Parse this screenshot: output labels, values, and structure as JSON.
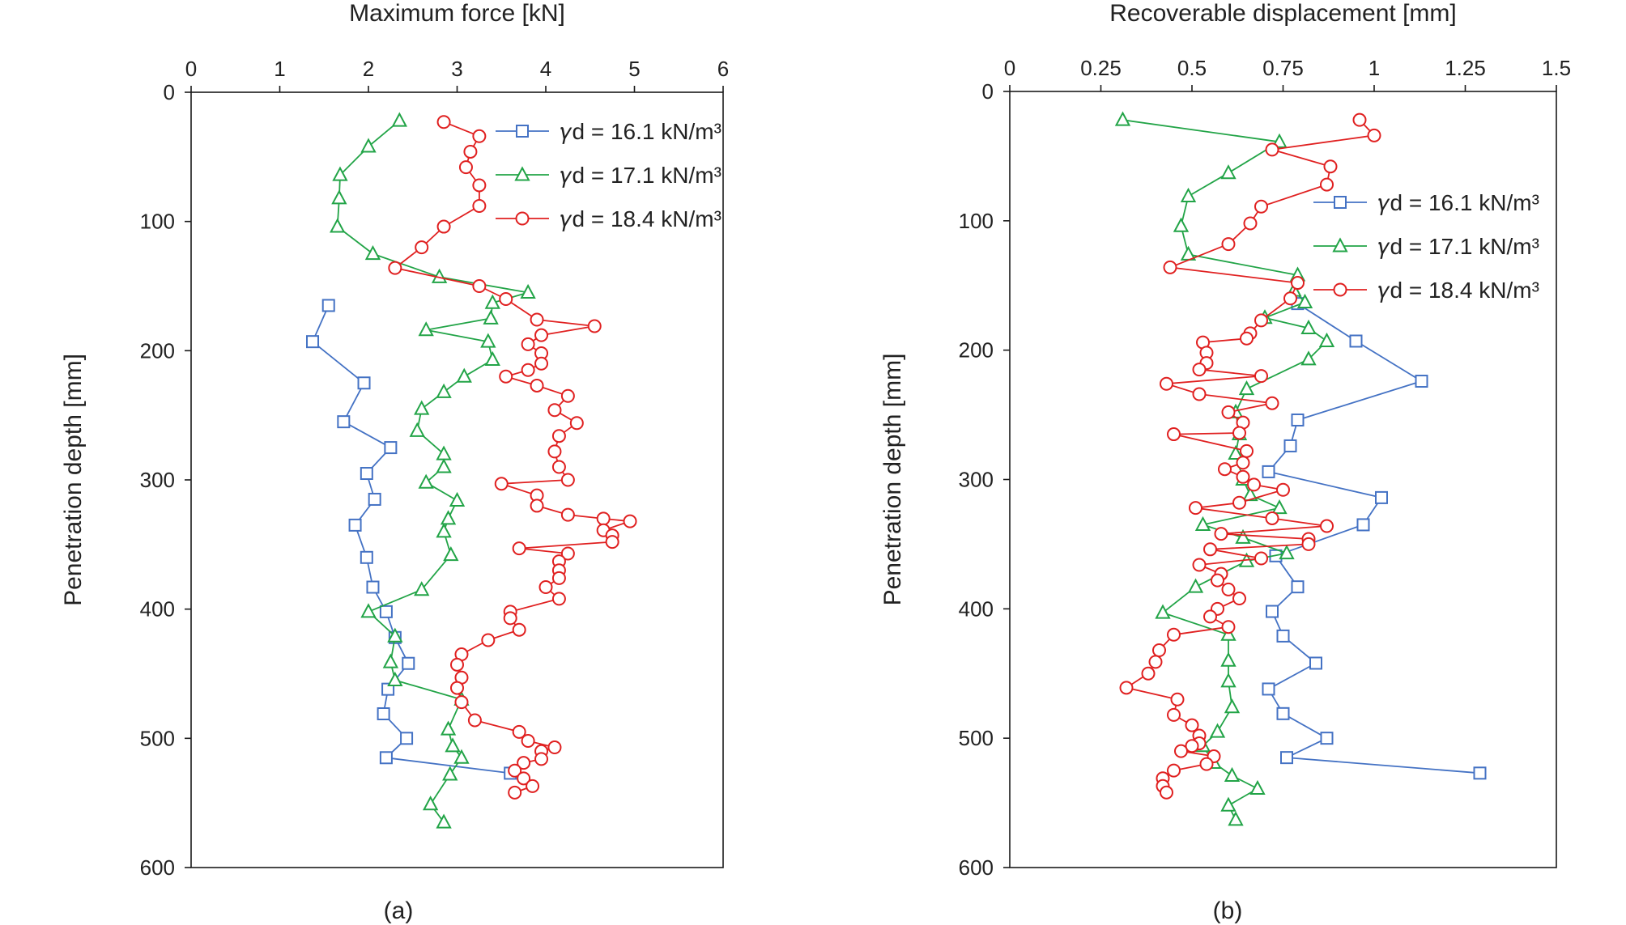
{
  "chart_data": [
    {
      "type": "line",
      "panel_label": "(a)",
      "xlabel": "Maximum force [kN]",
      "ylabel": "Penetration depth [mm]",
      "xlim": [
        0,
        6
      ],
      "ylim": [
        0,
        600
      ],
      "x_axis_position": "top",
      "y_inverted": true,
      "x_ticks": [
        "0",
        "1",
        "2",
        "3",
        "4",
        "5",
        "6"
      ],
      "y_ticks": [
        "0",
        "100",
        "200",
        "300",
        "400",
        "500",
        "600"
      ],
      "grid": false,
      "legend_position": "top-right",
      "series": [
        {
          "name": "𝛾d = 16.1 kN/m³",
          "color": "#4472c4",
          "marker": "square",
          "points": [
            [
              1.55,
              165
            ],
            [
              1.37,
              193
            ],
            [
              1.95,
              225
            ],
            [
              1.72,
              255
            ],
            [
              2.25,
              275
            ],
            [
              1.98,
              295
            ],
            [
              2.07,
              315
            ],
            [
              1.85,
              335
            ],
            [
              1.98,
              360
            ],
            [
              2.05,
              383
            ],
            [
              2.2,
              402
            ],
            [
              2.3,
              422
            ],
            [
              2.45,
              442
            ],
            [
              2.22,
              462
            ],
            [
              2.17,
              481
            ],
            [
              2.43,
              500
            ],
            [
              2.2,
              515
            ],
            [
              3.6,
              527
            ]
          ]
        },
        {
          "name": "𝛾d = 17.1 kN/m³",
          "color": "#22a447",
          "marker": "triangle",
          "points": [
            [
              2.35,
              22
            ],
            [
              2.0,
              42
            ],
            [
              1.68,
              64
            ],
            [
              1.67,
              82
            ],
            [
              1.65,
              104
            ],
            [
              2.05,
              125
            ],
            [
              2.8,
              143
            ],
            [
              3.8,
              155
            ],
            [
              3.4,
              163
            ],
            [
              3.38,
              175
            ],
            [
              2.65,
              184
            ],
            [
              3.35,
              193
            ],
            [
              3.4,
              207
            ],
            [
              3.08,
              220
            ],
            [
              2.85,
              232
            ],
            [
              2.6,
              245
            ],
            [
              2.55,
              262
            ],
            [
              2.85,
              280
            ],
            [
              2.85,
              290
            ],
            [
              2.65,
              302
            ],
            [
              3.0,
              316
            ],
            [
              2.9,
              330
            ],
            [
              2.85,
              340
            ],
            [
              2.93,
              358
            ],
            [
              2.6,
              385
            ],
            [
              2.0,
              402
            ],
            [
              2.3,
              421
            ],
            [
              2.25,
              441
            ],
            [
              2.3,
              455
            ],
            [
              3.05,
              470
            ],
            [
              2.9,
              493
            ],
            [
              2.95,
              506
            ],
            [
              3.05,
              515
            ],
            [
              2.92,
              528
            ],
            [
              2.7,
              551
            ],
            [
              2.85,
              565
            ]
          ]
        },
        {
          "name": "𝛾d = 18.4 kN/m³",
          "color": "#e02020",
          "marker": "circle",
          "points": [
            [
              2.85,
              23
            ],
            [
              3.25,
              34
            ],
            [
              3.15,
              46
            ],
            [
              3.1,
              58
            ],
            [
              3.25,
              72
            ],
            [
              3.25,
              88
            ],
            [
              2.85,
              104
            ],
            [
              2.6,
              120
            ],
            [
              2.3,
              136
            ],
            [
              3.25,
              150
            ],
            [
              3.55,
              160
            ],
            [
              3.9,
              176
            ],
            [
              4.55,
              181
            ],
            [
              3.95,
              188
            ],
            [
              3.8,
              195
            ],
            [
              3.95,
              202
            ],
            [
              3.95,
              210
            ],
            [
              3.8,
              215
            ],
            [
              3.55,
              220
            ],
            [
              3.9,
              227
            ],
            [
              4.25,
              235
            ],
            [
              4.1,
              246
            ],
            [
              4.35,
              256
            ],
            [
              4.15,
              266
            ],
            [
              4.1,
              278
            ],
            [
              4.15,
              290
            ],
            [
              4.25,
              300
            ],
            [
              3.5,
              303
            ],
            [
              3.9,
              312
            ],
            [
              3.9,
              320
            ],
            [
              4.25,
              327
            ],
            [
              4.65,
              330
            ],
            [
              4.95,
              332
            ],
            [
              4.65,
              339
            ],
            [
              4.75,
              343
            ],
            [
              4.75,
              348
            ],
            [
              3.7,
              353
            ],
            [
              4.25,
              357
            ],
            [
              4.15,
              363
            ],
            [
              4.15,
              370
            ],
            [
              4.15,
              376
            ],
            [
              4.0,
              383
            ],
            [
              4.15,
              392
            ],
            [
              3.6,
              402
            ],
            [
              3.6,
              407
            ],
            [
              3.7,
              416
            ],
            [
              3.35,
              424
            ],
            [
              3.05,
              435
            ],
            [
              3.0,
              443
            ],
            [
              3.05,
              453
            ],
            [
              3.0,
              461
            ],
            [
              3.05,
              472
            ],
            [
              3.2,
              486
            ],
            [
              3.7,
              495
            ],
            [
              3.8,
              502
            ],
            [
              4.1,
              507
            ],
            [
              3.95,
              510
            ],
            [
              3.95,
              516
            ],
            [
              3.75,
              519
            ],
            [
              3.65,
              525
            ],
            [
              3.75,
              531
            ],
            [
              3.85,
              537
            ],
            [
              3.65,
              542
            ]
          ]
        }
      ]
    },
    {
      "type": "line",
      "panel_label": "(b)",
      "xlabel": "Recoverable displacement [mm]",
      "ylabel": "Penetration depth [mm]",
      "xlim": [
        0,
        1.5
      ],
      "ylim": [
        0,
        600
      ],
      "x_axis_position": "top",
      "y_inverted": true,
      "x_ticks": [
        "0",
        "0.25",
        "0.5",
        "0.75",
        "1",
        "1.25",
        "1.5"
      ],
      "y_ticks": [
        "0",
        "100",
        "200",
        "300",
        "400",
        "500",
        "600"
      ],
      "grid": false,
      "legend_position": "top-right",
      "series": [
        {
          "name": "𝛾d = 16.1 kN/m³",
          "color": "#4472c4",
          "marker": "square",
          "points": [
            [
              0.79,
              164
            ],
            [
              0.95,
              193
            ],
            [
              1.13,
              224
            ],
            [
              0.79,
              254
            ],
            [
              0.77,
              274
            ],
            [
              0.71,
              294
            ],
            [
              1.02,
              314
            ],
            [
              0.97,
              335
            ],
            [
              0.73,
              359
            ],
            [
              0.79,
              383
            ],
            [
              0.72,
              402
            ],
            [
              0.75,
              421
            ],
            [
              0.84,
              442
            ],
            [
              0.71,
              462
            ],
            [
              0.75,
              481
            ],
            [
              0.87,
              500
            ],
            [
              0.76,
              515
            ],
            [
              1.29,
              527
            ]
          ]
        },
        {
          "name": "𝛾d = 17.1 kN/m³",
          "color": "#22a447",
          "marker": "triangle",
          "points": [
            [
              0.31,
              22
            ],
            [
              0.74,
              39
            ],
            [
              0.6,
              63
            ],
            [
              0.49,
              81
            ],
            [
              0.47,
              104
            ],
            [
              0.49,
              126
            ],
            [
              0.79,
              142
            ],
            [
              0.78,
              154
            ],
            [
              0.81,
              163
            ],
            [
              0.7,
              175
            ],
            [
              0.82,
              183
            ],
            [
              0.87,
              193
            ],
            [
              0.82,
              207
            ],
            [
              0.65,
              230
            ],
            [
              0.62,
              248
            ],
            [
              0.63,
              265
            ],
            [
              0.62,
              280
            ],
            [
              0.64,
              300
            ],
            [
              0.66,
              312
            ],
            [
              0.74,
              322
            ],
            [
              0.53,
              335
            ],
            [
              0.64,
              345
            ],
            [
              0.76,
              357
            ],
            [
              0.65,
              363
            ],
            [
              0.51,
              383
            ],
            [
              0.42,
              403
            ],
            [
              0.6,
              420
            ],
            [
              0.6,
              440
            ],
            [
              0.6,
              456
            ],
            [
              0.61,
              476
            ],
            [
              0.57,
              495
            ],
            [
              0.53,
              506
            ],
            [
              0.56,
              519
            ],
            [
              0.61,
              529
            ],
            [
              0.68,
              539
            ],
            [
              0.6,
              552
            ],
            [
              0.62,
              563
            ]
          ]
        },
        {
          "name": "𝛾d = 18.4 kN/m³",
          "color": "#e02020",
          "marker": "circle",
          "points": [
            [
              0.96,
              22
            ],
            [
              1.0,
              34
            ],
            [
              0.72,
              45
            ],
            [
              0.88,
              58
            ],
            [
              0.87,
              72
            ],
            [
              0.69,
              89
            ],
            [
              0.66,
              102
            ],
            [
              0.6,
              118
            ],
            [
              0.44,
              136
            ],
            [
              0.79,
              148
            ],
            [
              0.77,
              160
            ],
            [
              0.69,
              177
            ],
            [
              0.66,
              187
            ],
            [
              0.65,
              191
            ],
            [
              0.53,
              194
            ],
            [
              0.54,
              202
            ],
            [
              0.54,
              210
            ],
            [
              0.52,
              215
            ],
            [
              0.69,
              220
            ],
            [
              0.43,
              226
            ],
            [
              0.52,
              234
            ],
            [
              0.72,
              241
            ],
            [
              0.6,
              248
            ],
            [
              0.64,
              256
            ],
            [
              0.63,
              264
            ],
            [
              0.45,
              265
            ],
            [
              0.65,
              278
            ],
            [
              0.64,
              287
            ],
            [
              0.59,
              292
            ],
            [
              0.64,
              298
            ],
            [
              0.67,
              304
            ],
            [
              0.75,
              308
            ],
            [
              0.63,
              318
            ],
            [
              0.51,
              322
            ],
            [
              0.72,
              330
            ],
            [
              0.87,
              336
            ],
            [
              0.58,
              342
            ],
            [
              0.82,
              346
            ],
            [
              0.82,
              350
            ],
            [
              0.55,
              354
            ],
            [
              0.69,
              361
            ],
            [
              0.52,
              366
            ],
            [
              0.58,
              373
            ],
            [
              0.57,
              378
            ],
            [
              0.6,
              385
            ],
            [
              0.63,
              392
            ],
            [
              0.57,
              400
            ],
            [
              0.55,
              406
            ],
            [
              0.6,
              414
            ],
            [
              0.45,
              420
            ],
            [
              0.41,
              432
            ],
            [
              0.4,
              441
            ],
            [
              0.38,
              450
            ],
            [
              0.32,
              461
            ],
            [
              0.46,
              470
            ],
            [
              0.45,
              482
            ],
            [
              0.5,
              490
            ],
            [
              0.52,
              498
            ],
            [
              0.52,
              504
            ],
            [
              0.5,
              506
            ],
            [
              0.47,
              510
            ],
            [
              0.56,
              514
            ],
            [
              0.54,
              520
            ],
            [
              0.45,
              525
            ],
            [
              0.42,
              531
            ],
            [
              0.42,
              537
            ],
            [
              0.43,
              542
            ]
          ]
        }
      ]
    }
  ]
}
